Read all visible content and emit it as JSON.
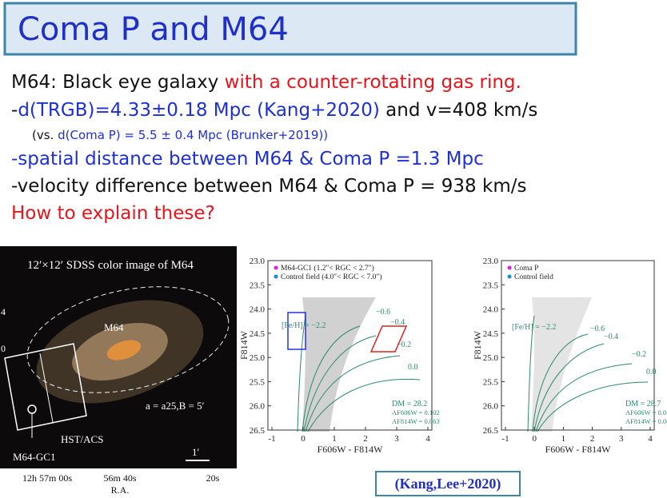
{
  "header": {
    "title": "Coma P and M64"
  },
  "lines": [
    {
      "size": "large",
      "segments": [
        {
          "text": "M64: Black eye galaxy ",
          "color": "#111111"
        },
        {
          "text": "with a counter-rotating gas ring.",
          "color": "#e8141c"
        }
      ]
    },
    {
      "size": "large",
      "segments": [
        {
          "text": "-",
          "color": "#111111"
        },
        {
          "text": "d(TRGB)=4.33±0.18 Mpc (Kang+2020)",
          "color": "#1d2fd8"
        },
        {
          "text": " and v=408 km/s",
          "color": "#111111"
        }
      ]
    },
    {
      "size": "small",
      "segments": [
        {
          "text": "(vs. ",
          "color": "#111111"
        },
        {
          "text": "d(Coma P) = 5.5 ± 0.4 Mpc (Brunker+2019))",
          "color": "#1d2fd8"
        }
      ]
    },
    {
      "size": "large",
      "segments": [
        {
          "text": "-spatial distance between M64 & Coma P =1.3 Mpc",
          "color": "#1d2fd8"
        }
      ]
    },
    {
      "size": "large",
      "segments": [
        {
          "text": "-velocity difference between M64 & Coma P = 938 km/s",
          "color": "#111111"
        }
      ]
    },
    {
      "size": "large",
      "segments": [
        {
          "text": "How to explain these?",
          "color": "#e8141c"
        }
      ]
    }
  ],
  "image": {
    "caption": "12′×12′ SDSS color image of M64",
    "galaxy": "M64",
    "radius": "a = a25,B = 5′",
    "aperture": "HST/ACS",
    "cluster": "M64-GC1",
    "scale": "1′",
    "ra_ticks": [
      "12h 57m 00s",
      "56m 40s",
      "20s"
    ],
    "ra_label": "R.A.",
    "dec_ticks": [
      "4",
      "0"
    ]
  },
  "cmds": [
    {
      "ylabel": "F814W",
      "xlabel": "F606W - F814W",
      "yticks": [
        "23.0",
        "23.5",
        "24.0",
        "24.5",
        "25.0",
        "25.5",
        "26.0",
        "26.5"
      ],
      "xticks": [
        "-1",
        "0",
        "1",
        "2",
        "3",
        "4"
      ],
      "legend": [
        "M64-GC1 (1.2″< RGC < 2.7″)",
        "Control field (4.0″< RGC < 7.0″)"
      ],
      "isochrones": [
        "[Fe/H] = −2.2",
        "−0.6",
        "−0.4",
        "−0.2",
        "0.0"
      ],
      "notes": [
        "DM = 28.2",
        "AF606W = 0.102",
        "AF814W = 0.063"
      ]
    },
    {
      "ylabel": "F814W",
      "xlabel": "F606W - F814W",
      "yticks": [
        "23.0",
        "23.5",
        "24.0",
        "24.5",
        "25.0",
        "25.5",
        "26.0",
        "26.5"
      ],
      "xticks": [
        "-1",
        "0",
        "1",
        "2",
        "3",
        "4"
      ],
      "legend": [
        "Coma P",
        "Control field"
      ],
      "isochrones": [
        "[Fe/H] = −2.2",
        "−0.6",
        "−0.4",
        "−0.2",
        "0.0"
      ],
      "notes": [
        "DM = 28.7",
        "AF606W = 0.077",
        "AF814W = 0.048"
      ]
    }
  ],
  "citation": "(Kang,Lee+2020)"
}
